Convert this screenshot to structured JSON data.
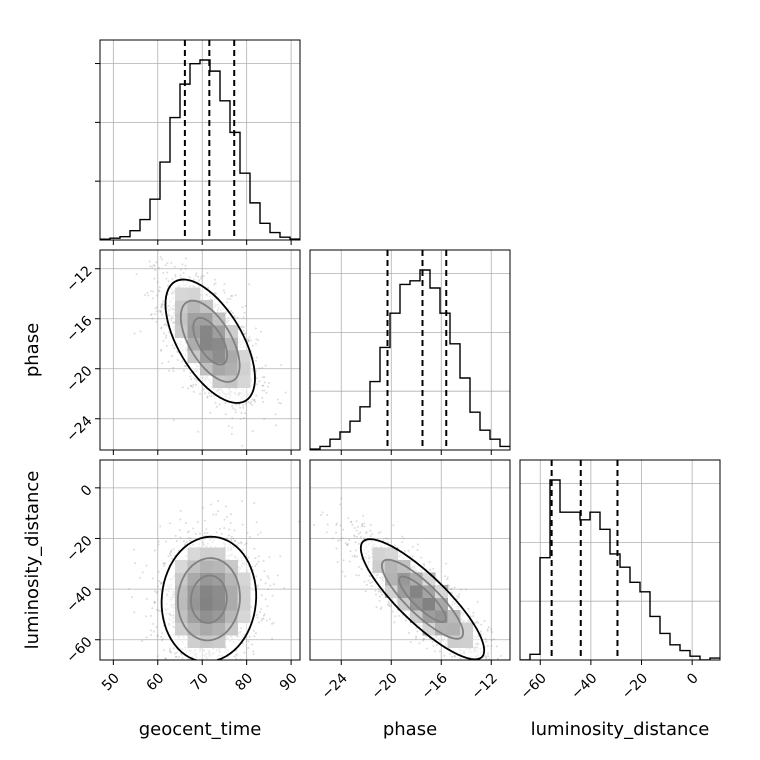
{
  "chart_data": {
    "type": "corner",
    "parameters": [
      "geocent_time",
      "phase",
      "luminosity_distance"
    ],
    "ranges": {
      "geocent_time": [
        47,
        92
      ],
      "phase": [
        -26.5,
        -10.5
      ],
      "luminosity_distance": [
        -68,
        11
      ]
    },
    "ticks": {
      "geocent_time": [
        50,
        60,
        70,
        80,
        90
      ],
      "phase": [
        -24,
        -20,
        -16,
        -12
      ],
      "luminosity_distance": [
        -60,
        -40,
        -20,
        0
      ]
    },
    "tick_labels": {
      "geocent_time": [
        "50",
        "60",
        "70",
        "80",
        "90"
      ],
      "phase": [
        "−24",
        "−20",
        "−16",
        "−12"
      ],
      "luminosity_distance": [
        "−60",
        "−40",
        "−20",
        "0"
      ]
    },
    "grid": true,
    "histograms": {
      "geocent_time": {
        "bin_edges": [
          47,
          49.25,
          51.5,
          53.75,
          56,
          58.25,
          60.5,
          62.75,
          65,
          67.25,
          69.5,
          71.75,
          74,
          76.25,
          78.5,
          80.75,
          83,
          85.25,
          87.5,
          89.75,
          92
        ],
        "counts": [
          0.4,
          1.0,
          1.8,
          5,
          11,
          22,
          42,
          66,
          84,
          95,
          97,
          91,
          75,
          58,
          36,
          20,
          9,
          4,
          1.5,
          0.5
        ],
        "quantiles": [
          66.1,
          71.6,
          77.2
        ]
      },
      "phase": {
        "bin_edges": [
          -26.5,
          -25.7,
          -24.9,
          -24.1,
          -23.3,
          -22.5,
          -21.7,
          -20.9,
          -20.1,
          -19.3,
          -18.5,
          -17.7,
          -16.9,
          -16.1,
          -15.3,
          -14.5,
          -13.7,
          -12.9,
          -12.1,
          -11.3,
          -10.5
        ],
        "counts": [
          0.5,
          2,
          6,
          10,
          16,
          24,
          38,
          57,
          76,
          92,
          94,
          100,
          90,
          76,
          59,
          40,
          21,
          11,
          6,
          2
        ],
        "quantiles": [
          -20.3,
          -17.5,
          -15.6
        ]
      },
      "luminosity_distance": {
        "bin_edges": [
          -68,
          -64.05,
          -60.1,
          -56.15,
          -52.2,
          -48.25,
          -44.3,
          -40.35,
          -36.4,
          -32.45,
          -28.5,
          -24.55,
          -20.6,
          -16.65,
          -12.7,
          -8.75,
          -4.8,
          -0.85,
          3.1,
          7.05,
          11
        ],
        "counts": [
          0,
          3,
          54,
          95,
          78,
          78,
          74,
          78,
          69,
          56,
          49,
          41,
          36,
          23,
          14,
          8,
          5,
          2,
          0,
          1
        ],
        "quantiles": [
          -55.5,
          -44,
          -29.5
        ]
      }
    },
    "scatter_2d": {
      "phase_vs_geocent_time": {
        "x": "geocent_time",
        "y": "phase",
        "mean": [
          71.8,
          -17.8
        ],
        "sd": [
          5.3,
          2.6
        ],
        "corr": -0.6
      },
      "luminosity_distance_vs_geocent_time": {
        "x": "geocent_time",
        "y": "luminosity_distance",
        "mean": [
          71.5,
          -44
        ],
        "sd": [
          5.6,
          13
        ],
        "corr": 0.05
      },
      "luminosity_distance_vs_phase": {
        "x": "phase",
        "y": "luminosity_distance",
        "mean": [
          -17.5,
          -44
        ],
        "sd": [
          2.6,
          12.5
        ],
        "corr": -0.85
      }
    }
  }
}
